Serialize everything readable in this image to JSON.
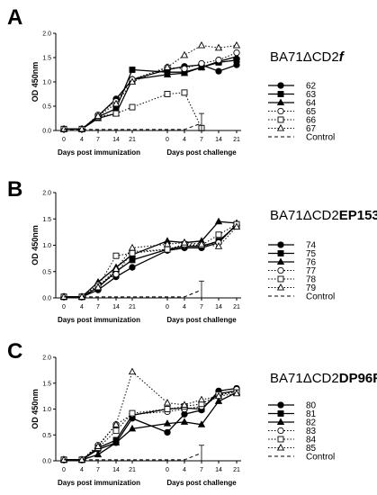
{
  "figure": {
    "axis_ticks_y": [
      "0.0",
      "0.5",
      "1.0",
      "1.5",
      "2.0"
    ],
    "axis_ticks_x": [
      "0",
      "4",
      "7",
      "14",
      "21",
      "0",
      "4",
      "7",
      "14",
      "21"
    ],
    "xlabel_left": "Days post immunization",
    "xlabel_right": "Days post challenge",
    "ylabel": "OD 450nm"
  },
  "chart_data": [
    {
      "type": "line",
      "panel_letter": "A",
      "title": "BA71ΔCD2",
      "title_suffix": "f",
      "ylabel": "OD 450nm",
      "ylim": [
        0,
        2.0
      ],
      "x_categories": [
        "0",
        "4",
        "7",
        "14",
        "21",
        "0",
        "4",
        "7",
        "14",
        "21"
      ],
      "x_groups": [
        "Days post immunization",
        "Days post challenge"
      ],
      "legend_position": "right",
      "series": [
        {
          "name": "62",
          "marker": "circle-filled",
          "dash": "solid",
          "values": [
            0.03,
            0.03,
            0.3,
            0.65,
            1.05,
            1.25,
            1.32,
            1.35,
            1.22,
            1.35
          ]
        },
        {
          "name": "63",
          "marker": "square-filled",
          "dash": "solid",
          "values": [
            0.03,
            0.03,
            0.28,
            0.45,
            1.25,
            1.2,
            1.2,
            1.3,
            1.4,
            1.45
          ]
        },
        {
          "name": "64",
          "marker": "triangle-filled",
          "dash": "solid",
          "values": [
            0.03,
            0.03,
            0.25,
            0.35,
            1.05,
            1.15,
            1.18,
            1.3,
            1.42,
            1.52
          ]
        },
        {
          "name": "65",
          "marker": "circle-open",
          "dash": "dotted",
          "values": [
            0.03,
            0.03,
            0.32,
            0.6,
            1.05,
            1.3,
            1.27,
            1.38,
            1.45,
            1.6
          ]
        },
        {
          "name": "66",
          "marker": "square-open",
          "dash": "dotted",
          "values": [
            0.03,
            0.03,
            0.28,
            0.35,
            0.48,
            0.75,
            0.78,
            0.05,
            null,
            null
          ]
        },
        {
          "name": "67",
          "marker": "triangle-open",
          "dash": "dotted",
          "values": [
            0.03,
            0.03,
            0.3,
            0.55,
            1.0,
            1.3,
            1.55,
            1.75,
            1.7,
            1.75
          ]
        },
        {
          "name": "Control",
          "marker": "none",
          "dash": "dashed",
          "values": [
            0.02,
            0.02,
            0.02,
            0.02,
            0.02,
            0.02,
            0.02,
            0.15,
            null,
            null
          ],
          "error_bar": {
            "index": 7,
            "low": 0.0,
            "high": 0.35
          }
        }
      ]
    },
    {
      "type": "line",
      "panel_letter": "B",
      "title": "BA71ΔCD2",
      "title_suffix": "EP153R",
      "ylabel": "OD 450nm",
      "ylim": [
        0,
        2.0
      ],
      "x_categories": [
        "0",
        "4",
        "7",
        "14",
        "21",
        "0",
        "4",
        "7",
        "14",
        "21"
      ],
      "x_groups": [
        "Days post immunization",
        "Days post challenge"
      ],
      "legend_position": "right",
      "series": [
        {
          "name": "74",
          "marker": "circle-filled",
          "dash": "solid",
          "values": [
            0.02,
            0.02,
            0.15,
            0.4,
            0.58,
            0.9,
            0.95,
            0.95,
            1.05,
            1.4
          ]
        },
        {
          "name": "75",
          "marker": "square-filled",
          "dash": "solid",
          "values": [
            0.02,
            0.02,
            0.2,
            0.5,
            0.72,
            0.92,
            0.98,
            0.98,
            1.08,
            1.38
          ]
        },
        {
          "name": "76",
          "marker": "triangle-filled",
          "dash": "solid",
          "values": [
            0.02,
            0.02,
            0.3,
            0.58,
            0.82,
            1.08,
            1.05,
            1.08,
            1.45,
            1.42
          ]
        },
        {
          "name": "77",
          "marker": "circle-open",
          "dash": "dotted",
          "values": [
            0.02,
            0.02,
            0.25,
            0.45,
            0.88,
            0.92,
            1.0,
            1.0,
            1.05,
            1.38
          ]
        },
        {
          "name": "78",
          "marker": "square-open",
          "dash": "dotted",
          "values": [
            0.02,
            0.02,
            0.22,
            0.8,
            0.85,
            0.92,
            1.02,
            1.0,
            1.2,
            1.4
          ]
        },
        {
          "name": "79",
          "marker": "triangle-open",
          "dash": "dotted",
          "values": [
            0.02,
            0.02,
            0.2,
            0.55,
            0.95,
            1.02,
            1.05,
            1.02,
            0.98,
            1.35
          ]
        },
        {
          "name": "Control",
          "marker": "none",
          "dash": "dashed",
          "values": [
            0.02,
            0.02,
            0.02,
            0.02,
            0.02,
            0.02,
            0.02,
            0.15,
            null,
            null
          ],
          "error_bar": {
            "index": 7,
            "low": 0.0,
            "high": 0.32
          }
        }
      ]
    },
    {
      "type": "line",
      "panel_letter": "C",
      "title": "BA71ΔCD2",
      "title_suffix": "DP96R",
      "ylabel": "OD 450nm",
      "ylim": [
        0,
        2.0
      ],
      "x_categories": [
        "0",
        "4",
        "7",
        "14",
        "21",
        "0",
        "4",
        "7",
        "14",
        "21"
      ],
      "x_groups": [
        "Days post immunization",
        "Days post challenge"
      ],
      "legend_position": "right",
      "series": [
        {
          "name": "80",
          "marker": "circle-filled",
          "dash": "solid",
          "values": [
            0.02,
            0.02,
            0.22,
            0.35,
            0.82,
            0.55,
            0.9,
            0.98,
            1.35,
            1.4
          ]
        },
        {
          "name": "81",
          "marker": "square-filled",
          "dash": "solid",
          "values": [
            0.02,
            0.02,
            0.25,
            0.4,
            0.88,
            1.0,
            1.02,
            1.0,
            1.3,
            1.35
          ]
        },
        {
          "name": "82",
          "marker": "triangle-filled",
          "dash": "solid",
          "values": [
            0.02,
            0.02,
            0.12,
            0.35,
            0.62,
            0.72,
            0.75,
            0.7,
            1.15,
            1.32
          ]
        },
        {
          "name": "83",
          "marker": "circle-open",
          "dash": "dotted",
          "values": [
            0.02,
            0.02,
            0.3,
            0.7,
            0.9,
            0.95,
            1.0,
            1.05,
            1.25,
            1.38
          ]
        },
        {
          "name": "84",
          "marker": "square-open",
          "dash": "dotted",
          "values": [
            0.02,
            0.02,
            0.25,
            0.58,
            0.92,
            1.0,
            1.05,
            1.1,
            1.28,
            1.32
          ]
        },
        {
          "name": "85",
          "marker": "triangle-open",
          "dash": "dotted",
          "values": [
            0.02,
            0.02,
            0.28,
            0.7,
            1.72,
            1.12,
            1.08,
            1.18,
            1.25,
            1.3
          ]
        },
        {
          "name": "Control",
          "marker": "none",
          "dash": "dashed",
          "values": [
            0.02,
            0.02,
            0.02,
            0.02,
            0.02,
            0.02,
            0.02,
            0.15,
            null,
            null
          ],
          "error_bar": {
            "index": 7,
            "low": 0.0,
            "high": 0.3
          }
        }
      ]
    }
  ]
}
